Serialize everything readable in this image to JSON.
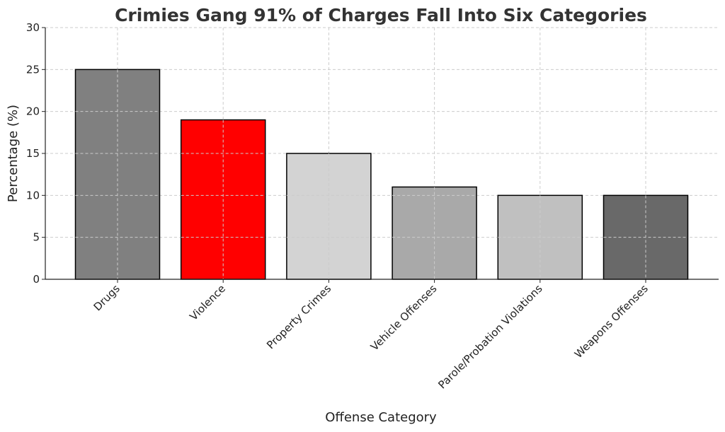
{
  "chart_data": {
    "type": "bar",
    "title": "Crimies Gang 91% of Charges Fall Into Six Categories",
    "xlabel": "Offense Category",
    "ylabel": "Percentage (%)",
    "categories": [
      "Drugs",
      "Violence",
      "Property Crimes",
      "Vehicle Offenses",
      "Parole/Probation Violations",
      "Weapons Offenses"
    ],
    "values": [
      25,
      19,
      15,
      11,
      10,
      10
    ],
    "colors": [
      "#808080",
      "#ff0000",
      "#d3d3d3",
      "#a9a9a9",
      "#c0c0c0",
      "#696969"
    ],
    "ylim": [
      0,
      30
    ],
    "yticks": [
      0,
      5,
      10,
      15,
      20,
      25,
      30
    ],
    "grid": true
  }
}
